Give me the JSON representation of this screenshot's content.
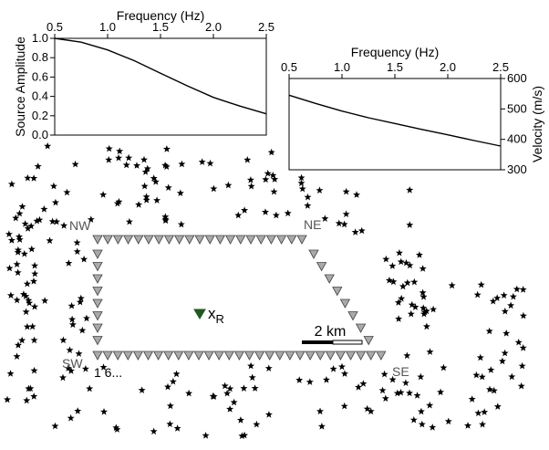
{
  "chart_data": [
    {
      "type": "line",
      "xlabel": "Frequency (Hz)",
      "ylabel": "Source Amplitude",
      "xlim": [
        0.5,
        2.5
      ],
      "ylim": [
        0.0,
        1.0
      ],
      "x_ticks": [
        "0.5",
        "1.0",
        "1.5",
        "2.0",
        "2.5"
      ],
      "y_ticks": [
        "0.0",
        "0.2",
        "0.4",
        "0.6",
        "0.8",
        "1.0"
      ],
      "x": [
        0.5,
        0.75,
        1.0,
        1.25,
        1.5,
        1.75,
        2.0,
        2.25,
        2.5
      ],
      "y": [
        1.0,
        0.96,
        0.88,
        0.77,
        0.64,
        0.51,
        0.39,
        0.3,
        0.22
      ]
    },
    {
      "type": "line",
      "xlabel": "Frequency (Hz)",
      "ylabel": "Velocity (m/s)",
      "xlim": [
        0.5,
        2.5
      ],
      "ylim": [
        300,
        600
      ],
      "x_ticks": [
        "0.5",
        "1.0",
        "1.5",
        "2.0",
        "2.5"
      ],
      "y_ticks": [
        "300",
        "400",
        "500",
        "600"
      ],
      "x": [
        0.5,
        0.75,
        1.0,
        1.25,
        1.5,
        1.75,
        2.0,
        2.25,
        2.5
      ],
      "y": [
        545,
        518,
        493,
        471,
        452,
        433,
        415,
        396,
        378
      ]
    }
  ],
  "map": {
    "corners": {
      "nw": "NW",
      "ne": "NE",
      "sw": "SW",
      "se": "SE"
    },
    "receiver_label": "x",
    "receiver_subscript": "R",
    "scale_label": "2 km",
    "station_index_label": "1 6...",
    "colors": {
      "station_fill": "#aaaaaa",
      "receiver_fill": "#1f5a1f",
      "source_fill": "#000000"
    }
  }
}
